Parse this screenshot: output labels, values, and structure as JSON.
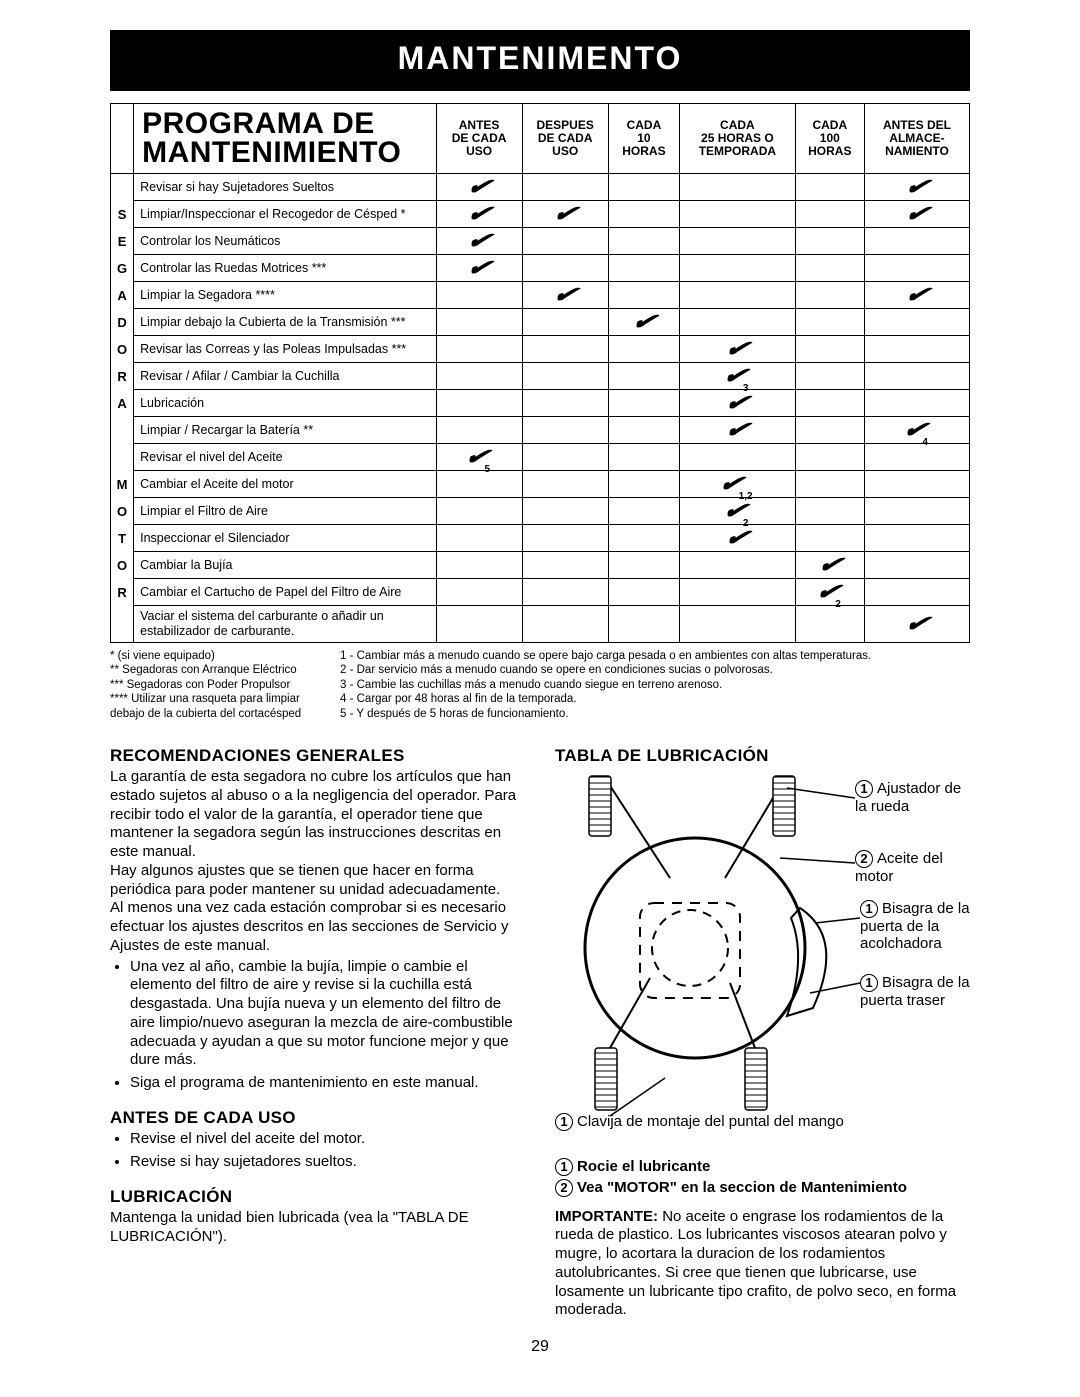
{
  "banner": "MANTENIMENTO",
  "tableTitle1": "PROGRAMA DE",
  "tableTitle2": "MANTENIMIENTO",
  "headers": [
    "ANTES\nDE CADA\nUSO",
    "DESPUES\nDE CADA\nUSO",
    "CADA\n10\nHORAS",
    "CADA\n25 HORAS O\nTEMPORADA",
    "CADA\n100\nHORAS",
    "ANTES DEL\nALMACE-\nNAMIENTO"
  ],
  "vlabels": [
    "",
    "S",
    "E",
    "G",
    "A",
    "D",
    "O",
    "R",
    "A",
    "",
    "",
    "M",
    "O",
    "T",
    "O",
    "R",
    "",
    ""
  ],
  "rows": [
    {
      "task": "Revisar si hay Sujetadores Sueltos",
      "c": [
        "✔",
        "",
        "",
        "",
        "",
        "✔"
      ]
    },
    {
      "task": "Limpiar/Inspeccionar el Recogedor de Césped *",
      "c": [
        "✔",
        "✔",
        "",
        "",
        "",
        "✔"
      ]
    },
    {
      "task": "Controlar los Neumáticos",
      "c": [
        "✔",
        "",
        "",
        "",
        "",
        ""
      ]
    },
    {
      "task": "Controlar las Ruedas Motrices ***",
      "c": [
        "✔",
        "",
        "",
        "",
        "",
        ""
      ]
    },
    {
      "task": "Limpiar la Segadora ****",
      "c": [
        "",
        "✔",
        "",
        "",
        "",
        "✔"
      ]
    },
    {
      "task": "Limpiar debajo la Cubierta de la Transmisión ***",
      "c": [
        "",
        "",
        "✔",
        "",
        "",
        ""
      ]
    },
    {
      "task": "Revisar las Correas y las Poleas Impulsadas ***",
      "c": [
        "",
        "",
        "",
        "✔",
        "",
        ""
      ]
    },
    {
      "task": "Revisar / Afilar / Cambiar la Cuchilla",
      "c": [
        "",
        "",
        "",
        "✔3",
        "",
        ""
      ]
    },
    {
      "task": "Lubricación",
      "c": [
        "",
        "",
        "",
        "✔",
        "",
        ""
      ]
    },
    {
      "task": "Limpiar / Recargar la Batería **",
      "c": [
        "",
        "",
        "",
        "✔",
        "",
        "✔4"
      ]
    },
    {
      "task": "Revisar el nivel del Aceite",
      "c": [
        "✔5",
        "",
        "",
        "",
        "",
        ""
      ]
    },
    {
      "task": "Cambiar el Aceite del motor",
      "c": [
        "",
        "",
        "",
        "✔1,2",
        "",
        ""
      ]
    },
    {
      "task": "Limpiar el Filtro de Aire",
      "c": [
        "",
        "",
        "",
        "✔2",
        "",
        ""
      ]
    },
    {
      "task": "Inspeccionar el Silenciador",
      "c": [
        "",
        "",
        "",
        "✔",
        "",
        ""
      ]
    },
    {
      "task": "Cambiar la Bujía",
      "c": [
        "",
        "",
        "",
        "",
        "✔",
        ""
      ]
    },
    {
      "task": "Cambiar el Cartucho de Papel del Filtro de Aire",
      "c": [
        "",
        "",
        "",
        "",
        "✔2",
        ""
      ]
    },
    {
      "task": "Vaciar el sistema del carburante o añadir un estabilizador de carburante.",
      "c": [
        "",
        "",
        "",
        "",
        "",
        "✔"
      ]
    }
  ],
  "footnotes": [
    {
      "l": "* (si viene equipado)",
      "r": "1 - Cambiar más a menudo cuando se opere bajo carga pesada o en ambientes con altas temperaturas."
    },
    {
      "l": "** Segadoras con Arranque Eléctrico",
      "r": "2 - Dar servicio más a menudo cuando se opere en condiciones sucias o polvorosas."
    },
    {
      "l": "*** Segadoras con Poder Propulsor",
      "r": "3 - Cambie las cuchillas más a menudo cuando siegue en terreno arenoso."
    },
    {
      "l": "**** Utilizar una rasqueta para limpiar",
      "r": "4 - Cargar por 48 horas al fin de la temporada."
    },
    {
      "l": "debajo de la cubierta del cortacésped",
      "r": "5 - Y después de 5 horas de funcionamiento."
    }
  ],
  "left": {
    "h1": "RECOMENDACIONES GENERALES",
    "p1": "La garantía de esta segadora no cubre los artículos que han estado sujetos al abuso o a la negligencia del operador. Para recibir todo el valor de la garantía, el operador tiene que mantener la segadora según las instrucciones descritas en este manual.",
    "p2": "Hay algunos ajustes que se tienen que hacer en forma periódica para poder mantener su unidad adecuadamente.",
    "p3": "Al menos una vez cada estación comprobar si es necesario efectuar los ajustes descritos en las secciones de Servicio y Ajustes de este manual.",
    "b1": "Una vez al año, cambie la bujía, limpie o cambie el elemento del filtro de aire y revise si la cuchilla está desgastada. Una bujía nueva y un elemento del filtro de aire limpio/nuevo aseguran la mezcla de aire-combustible adecuada y ayudan a que su motor funcione mejor y que dure más.",
    "b2": "Siga el programa de mantenimiento en este manual.",
    "h2": "ANTES DE CADA USO",
    "b3": "Revise el nivel del aceite del motor.",
    "b4": "Revise si hay sujetadores sueltos.",
    "h3": "LUBRICACIÓN",
    "p4": "Mantenga la unidad bien lubricada (vea la \"TABLA DE LUBRICACIÓN\")."
  },
  "right": {
    "h1": "TABLA DE LUBRICACIÓN",
    "labels": {
      "l1": "Ajustador de la rueda",
      "l2": "Aceite del motor",
      "l3": "Bisagra de la puerta de la acolchadora",
      "l4": "Bisagra de la puerta traser",
      "caption": "Clavija de montaje del puntal del mango"
    },
    "legend1": "Rocie el lubricante",
    "legend2": "Vea \"MOTOR\" en la seccion de Mantenimiento",
    "importantLabel": "IMPORTANTE:",
    "important": "No aceite o engrase los rodamientos de la rueda de plastico. Los lubricantes viscosos atearan polvo y mugre, lo acortara la duracion de los rodamientos autolubricantes. Si cree que tienen que lubricarse, use losamente un lubricante tipo crafito, de polvo seco, en forma moderada."
  },
  "pageNum": "29"
}
